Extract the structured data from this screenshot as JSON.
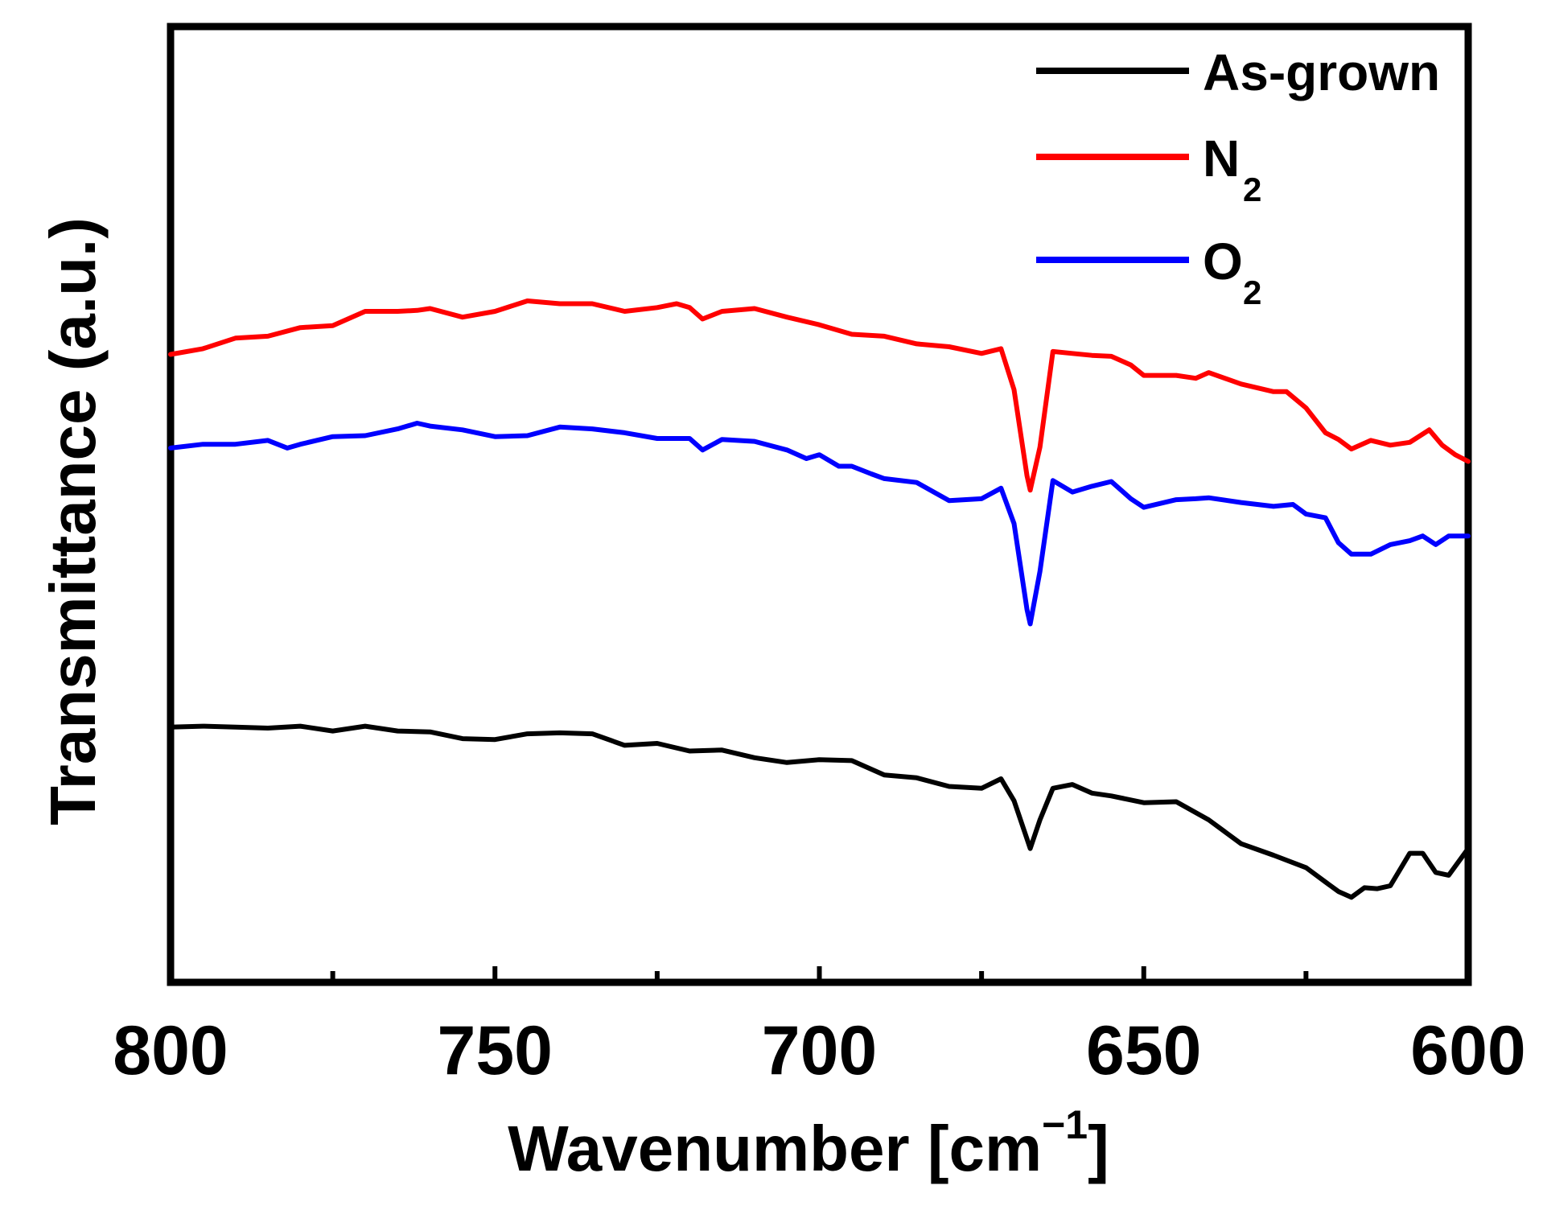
{
  "chart_data": {
    "type": "line",
    "title": "",
    "xlabel": "Wavenumber [cm",
    "xlabel_sup": "−1",
    "xlabel_close": "]",
    "ylabel": "Transmittance (a.u.)",
    "xlim": [
      800,
      600
    ],
    "ylim": [
      0,
      100
    ],
    "x_reversed": true,
    "yticks_shown": false,
    "grid": false,
    "legend_position": "top-right",
    "xticks": [
      800,
      750,
      700,
      650,
      600
    ],
    "xtick_labels": [
      "800",
      "750",
      "700",
      "650",
      "600"
    ],
    "minor_xticks": [
      775,
      725,
      675,
      625
    ],
    "series": [
      {
        "name": "As-grown",
        "label_main": "As-grown",
        "label_sub": "",
        "color": "#000000",
        "points": [
          [
            800,
            26.7
          ],
          [
            795,
            26.8
          ],
          [
            790,
            26.7
          ],
          [
            785,
            26.6
          ],
          [
            780,
            26.8
          ],
          [
            775,
            26.3
          ],
          [
            770,
            26.8
          ],
          [
            765,
            26.3
          ],
          [
            760,
            26.2
          ],
          [
            755,
            25.5
          ],
          [
            750,
            25.4
          ],
          [
            745,
            26.0
          ],
          [
            740,
            26.1
          ],
          [
            735,
            26.0
          ],
          [
            730,
            24.8
          ],
          [
            725,
            25.0
          ],
          [
            720,
            24.2
          ],
          [
            715,
            24.3
          ],
          [
            710,
            23.5
          ],
          [
            705,
            23.0
          ],
          [
            700,
            23.3
          ],
          [
            695,
            23.2
          ],
          [
            690,
            21.7
          ],
          [
            685,
            21.4
          ],
          [
            680,
            20.5
          ],
          [
            675,
            20.3
          ],
          [
            672,
            21.3
          ],
          [
            670,
            19.0
          ],
          [
            668,
            15.0
          ],
          [
            667.5,
            14.0
          ],
          [
            666,
            17.0
          ],
          [
            664,
            20.3
          ],
          [
            661,
            20.7
          ],
          [
            658,
            19.8
          ],
          [
            655,
            19.5
          ],
          [
            650,
            18.8
          ],
          [
            645,
            18.9
          ],
          [
            640,
            17.0
          ],
          [
            635,
            14.5
          ],
          [
            630,
            13.3
          ],
          [
            625,
            12.0
          ],
          [
            622,
            10.5
          ],
          [
            620,
            9.5
          ],
          [
            618,
            8.9
          ],
          [
            616,
            9.9
          ],
          [
            614,
            9.8
          ],
          [
            612,
            10.1
          ],
          [
            609,
            13.5
          ],
          [
            607,
            13.5
          ],
          [
            605,
            11.5
          ],
          [
            603,
            11.2
          ],
          [
            600,
            14.0
          ]
        ]
      },
      {
        "name": "N2",
        "label_main": "N",
        "label_sub": "2",
        "color": "#ff0000",
        "points": [
          [
            800,
            65.7
          ],
          [
            795,
            66.3
          ],
          [
            790,
            67.4
          ],
          [
            785,
            67.6
          ],
          [
            780,
            68.5
          ],
          [
            775,
            68.7
          ],
          [
            770,
            70.2
          ],
          [
            765,
            70.2
          ],
          [
            762,
            70.3
          ],
          [
            760,
            70.5
          ],
          [
            755,
            69.6
          ],
          [
            750,
            70.2
          ],
          [
            745,
            71.3
          ],
          [
            740,
            71.0
          ],
          [
            735,
            71.0
          ],
          [
            730,
            70.2
          ],
          [
            725,
            70.6
          ],
          [
            722,
            71.0
          ],
          [
            720,
            70.6
          ],
          [
            718,
            69.4
          ],
          [
            715,
            70.2
          ],
          [
            710,
            70.5
          ],
          [
            705,
            69.6
          ],
          [
            700,
            68.8
          ],
          [
            695,
            67.8
          ],
          [
            690,
            67.6
          ],
          [
            685,
            66.8
          ],
          [
            680,
            66.5
          ],
          [
            675,
            65.8
          ],
          [
            672,
            66.3
          ],
          [
            670,
            62.0
          ],
          [
            668,
            53.0
          ],
          [
            667.5,
            51.5
          ],
          [
            666,
            56.0
          ],
          [
            664,
            66.0
          ],
          [
            661,
            65.8
          ],
          [
            658,
            65.6
          ],
          [
            655,
            65.5
          ],
          [
            652,
            64.6
          ],
          [
            650,
            63.5
          ],
          [
            645,
            63.5
          ],
          [
            642,
            63.2
          ],
          [
            640,
            63.8
          ],
          [
            635,
            62.6
          ],
          [
            630,
            61.8
          ],
          [
            628,
            61.8
          ],
          [
            625,
            60.1
          ],
          [
            622,
            57.5
          ],
          [
            620,
            56.8
          ],
          [
            618,
            55.8
          ],
          [
            615,
            56.7
          ],
          [
            612,
            56.2
          ],
          [
            609,
            56.5
          ],
          [
            606,
            57.8
          ],
          [
            604,
            56.2
          ],
          [
            602,
            55.2
          ],
          [
            600,
            54.5
          ]
        ]
      },
      {
        "name": "O2",
        "label_main": "O",
        "label_sub": "2",
        "color": "#0000ff",
        "points": [
          [
            800,
            55.9
          ],
          [
            795,
            56.3
          ],
          [
            790,
            56.3
          ],
          [
            785,
            56.7
          ],
          [
            782,
            55.9
          ],
          [
            780,
            56.3
          ],
          [
            775,
            57.1
          ],
          [
            770,
            57.2
          ],
          [
            765,
            57.9
          ],
          [
            762,
            58.5
          ],
          [
            760,
            58.2
          ],
          [
            755,
            57.8
          ],
          [
            750,
            57.1
          ],
          [
            745,
            57.2
          ],
          [
            740,
            58.1
          ],
          [
            735,
            57.9
          ],
          [
            730,
            57.5
          ],
          [
            725,
            56.9
          ],
          [
            720,
            56.9
          ],
          [
            718,
            55.7
          ],
          [
            715,
            56.8
          ],
          [
            710,
            56.6
          ],
          [
            705,
            55.7
          ],
          [
            702,
            54.8
          ],
          [
            700,
            55.2
          ],
          [
            697,
            54.0
          ],
          [
            695,
            54.0
          ],
          [
            692,
            53.2
          ],
          [
            690,
            52.7
          ],
          [
            685,
            52.3
          ],
          [
            680,
            50.4
          ],
          [
            675,
            50.6
          ],
          [
            672,
            51.7
          ],
          [
            670,
            48.0
          ],
          [
            668,
            39.0
          ],
          [
            667.5,
            37.5
          ],
          [
            666,
            43.0
          ],
          [
            664,
            52.5
          ],
          [
            661,
            51.3
          ],
          [
            658,
            51.9
          ],
          [
            655,
            52.4
          ],
          [
            652,
            50.6
          ],
          [
            650,
            49.7
          ],
          [
            645,
            50.5
          ],
          [
            642,
            50.6
          ],
          [
            640,
            50.7
          ],
          [
            635,
            50.2
          ],
          [
            630,
            49.8
          ],
          [
            627,
            50.0
          ],
          [
            625,
            49.0
          ],
          [
            622,
            48.6
          ],
          [
            620,
            46.0
          ],
          [
            618,
            44.8
          ],
          [
            615,
            44.8
          ],
          [
            612,
            45.8
          ],
          [
            609,
            46.2
          ],
          [
            607,
            46.7
          ],
          [
            605,
            45.8
          ],
          [
            603,
            46.7
          ],
          [
            600,
            46.7
          ]
        ]
      }
    ]
  }
}
